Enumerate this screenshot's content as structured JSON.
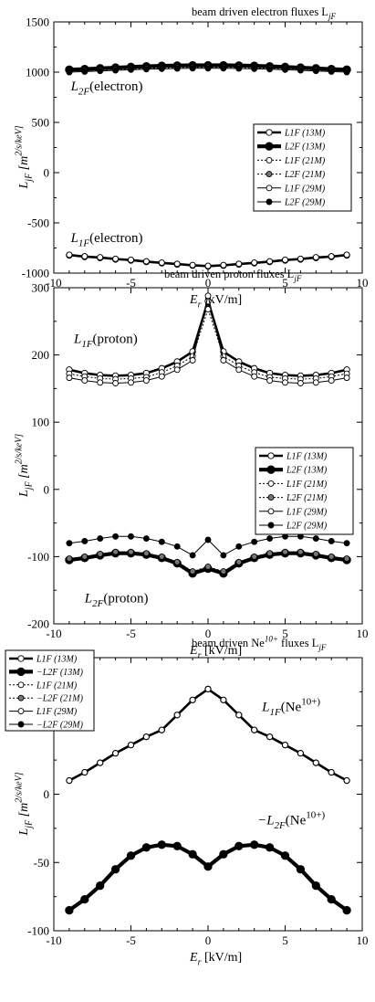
{
  "chart_data": [
    {
      "type": "line",
      "title": "beam driven electron fluxes L_jF",
      "xlabel": "E_r [kV/m]",
      "ylabel": "L_jF [m^2/s/keV]",
      "xlim": [
        -10,
        10
      ],
      "ylim": [
        -1000,
        1500
      ],
      "xticks": [
        -10,
        -5,
        0,
        5,
        10
      ],
      "yticks": [
        -1000,
        -500,
        0,
        500,
        1000,
        1500
      ],
      "grid": false,
      "legend_position": "right-middle",
      "annotations": [
        {
          "text": "L_2F(electron)",
          "x": -8.9,
          "y": 820
        },
        {
          "text": "L_1F(electron)",
          "x": -8.9,
          "y": -690
        }
      ],
      "x": [
        -9,
        -8,
        -7,
        -6,
        -5,
        -4,
        -3,
        -2,
        -1,
        0,
        1,
        2,
        3,
        4,
        5,
        6,
        7,
        8,
        9
      ],
      "series": [
        {
          "name": "L1F (13M)",
          "values": [
            -820,
            -835,
            -845,
            -860,
            -870,
            -885,
            -898,
            -910,
            -922,
            -930,
            -922,
            -910,
            -898,
            -885,
            -870,
            -860,
            -845,
            -835,
            -820
          ]
        },
        {
          "name": "L2F (13M)",
          "values": [
            1025,
            1030,
            1038,
            1045,
            1052,
            1058,
            1063,
            1066,
            1068,
            1068,
            1068,
            1066,
            1063,
            1058,
            1052,
            1045,
            1038,
            1030,
            1025
          ]
        },
        {
          "name": "L1F (21M)",
          "values": [
            -825,
            -840,
            -850,
            -865,
            -875,
            -890,
            -903,
            -915,
            -927,
            -935,
            -927,
            -915,
            -903,
            -890,
            -875,
            -865,
            -850,
            -840,
            -825
          ]
        },
        {
          "name": "L2F (21M)",
          "values": [
            1010,
            1015,
            1022,
            1028,
            1034,
            1039,
            1043,
            1046,
            1048,
            1048,
            1048,
            1046,
            1043,
            1039,
            1034,
            1028,
            1022,
            1015,
            1010
          ]
        },
        {
          "name": "L1F (29M)",
          "values": [
            -818,
            -833,
            -843,
            -858,
            -868,
            -883,
            -896,
            -908,
            -920,
            -928,
            -920,
            -908,
            -896,
            -883,
            -868,
            -858,
            -843,
            -833,
            -818
          ]
        },
        {
          "name": "L2F (29M)",
          "values": [
            1000,
            1005,
            1012,
            1018,
            1024,
            1029,
            1033,
            1036,
            1038,
            1038,
            1038,
            1036,
            1033,
            1029,
            1024,
            1018,
            1012,
            1005,
            1000
          ]
        }
      ]
    },
    {
      "type": "line",
      "title": "beam driven proton fluxes L_jF",
      "xlabel": "E_r [kV/m]",
      "ylabel": "L_jF [m^2/s/keV]",
      "xlim": [
        -10,
        10
      ],
      "ylim": [
        -200,
        300
      ],
      "xticks": [
        -10,
        -5,
        0,
        5,
        10
      ],
      "yticks": [
        -200,
        -100,
        0,
        100,
        200,
        300
      ],
      "grid": false,
      "legend_position": "right-middle",
      "annotations": [
        {
          "text": "L_1F(proton)",
          "x": -8.7,
          "y": 218
        },
        {
          "text": "L_2F(proton)",
          "x": -8.0,
          "y": -168
        }
      ],
      "x": [
        -9,
        -8,
        -7,
        -6,
        -5,
        -4,
        -3,
        -2,
        -1,
        0,
        1,
        2,
        3,
        4,
        5,
        6,
        7,
        8,
        9
      ],
      "series": [
        {
          "name": "L1F (13M)",
          "values": [
            178,
            173,
            170,
            169,
            170,
            173,
            180,
            190,
            205,
            280,
            205,
            190,
            180,
            173,
            170,
            169,
            170,
            173,
            178
          ]
        },
        {
          "name": "L2F (13M)",
          "values": [
            -105,
            -102,
            -98,
            -95,
            -95,
            -97,
            -102,
            -110,
            -125,
            -118,
            -125,
            -110,
            -102,
            -97,
            -95,
            -95,
            -98,
            -102,
            -105
          ]
        },
        {
          "name": "L1F (21M)",
          "values": [
            172,
            168,
            165,
            164,
            165,
            167,
            174,
            184,
            198,
            268,
            198,
            184,
            174,
            167,
            165,
            164,
            165,
            168,
            172
          ]
        },
        {
          "name": "L2F (21M)",
          "values": [
            -103,
            -100,
            -96,
            -93,
            -93,
            -95,
            -100,
            -108,
            -122,
            -115,
            -122,
            -108,
            -100,
            -95,
            -93,
            -93,
            -96,
            -100,
            -103
          ]
        },
        {
          "name": "L1F (29M)",
          "values": [
            166,
            162,
            159,
            158,
            159,
            162,
            168,
            178,
            192,
            288,
            192,
            178,
            168,
            162,
            159,
            158,
            159,
            162,
            166
          ]
        },
        {
          "name": "L2F (29M)",
          "values": [
            -80,
            -77,
            -73,
            -70,
            -70,
            -73,
            -78,
            -85,
            -98,
            -75,
            -98,
            -85,
            -78,
            -73,
            -70,
            -70,
            -73,
            -77,
            -80
          ]
        }
      ]
    },
    {
      "type": "line",
      "title": "beam driven Ne^10+ fluxes L_jF",
      "xlabel": "E_r [kV/m]",
      "ylabel": "L_jF [m^2/s/keV]",
      "xlim": [
        -10,
        10
      ],
      "ylim": [
        -100,
        100
      ],
      "xticks": [
        -10,
        -5,
        0,
        5,
        10
      ],
      "yticks": [
        -100,
        -50,
        0,
        50,
        100
      ],
      "grid": false,
      "legend_position": "top-left",
      "annotations": [
        {
          "text": "L_1F(Ne^10+)",
          "x": 3.5,
          "y": 61
        },
        {
          "text": "−L_2F(Ne^10+)",
          "x": 3.2,
          "y": -22
        }
      ],
      "x": [
        -9,
        -8,
        -7,
        -6,
        -5,
        -4,
        -3,
        -2,
        -1,
        0,
        1,
        2,
        3,
        4,
        5,
        6,
        7,
        8,
        9
      ],
      "series": [
        {
          "name": "L1F (13M)",
          "values": [
            10,
            16,
            23,
            30,
            36,
            42,
            47,
            58,
            69,
            77,
            69,
            58,
            47,
            42,
            36,
            30,
            23,
            16,
            10
          ]
        },
        {
          "name": "−L2F (13M)",
          "values": [
            -85,
            -77,
            -67,
            -55,
            -45,
            -39,
            -37,
            -38,
            -44,
            -53,
            -44,
            -38,
            -37,
            -39,
            -45,
            -55,
            -67,
            -77,
            -85
          ]
        },
        {
          "name": "L1F (21M)",
          "values": [
            10,
            16,
            23,
            30,
            36,
            42,
            47,
            58,
            69,
            77,
            69,
            58,
            47,
            42,
            36,
            30,
            23,
            16,
            10
          ]
        },
        {
          "name": "−L2F (21M)",
          "values": [
            -85,
            -77,
            -67,
            -55,
            -45,
            -39,
            -37,
            -38,
            -44,
            -53,
            -44,
            -38,
            -37,
            -39,
            -45,
            -55,
            -67,
            -77,
            -85
          ]
        },
        {
          "name": "L1F (29M)",
          "values": [
            10,
            16,
            23,
            30,
            36,
            42,
            47,
            58,
            69,
            77,
            69,
            58,
            47,
            42,
            36,
            30,
            23,
            16,
            10
          ]
        },
        {
          "name": "−L2F (29M)",
          "values": [
            -85,
            -77,
            -67,
            -55,
            -45,
            -39,
            -37,
            -38,
            -44,
            -53,
            -44,
            -38,
            -37,
            -39,
            -45,
            -55,
            -67,
            -77,
            -85
          ]
        }
      ]
    }
  ]
}
